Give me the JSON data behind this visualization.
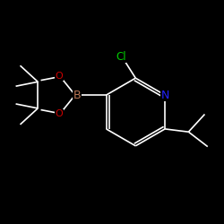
{
  "background_color": "#000000",
  "atom_colors": {
    "C": "#ffffff",
    "N": "#2222ff",
    "Cl": "#00cc00",
    "B": "#bb7755",
    "O": "#cc0000"
  },
  "bond_color": "#ffffff",
  "bond_width": 1.2,
  "font_size_atom": 8.5,
  "font_size_cl": 8.5
}
